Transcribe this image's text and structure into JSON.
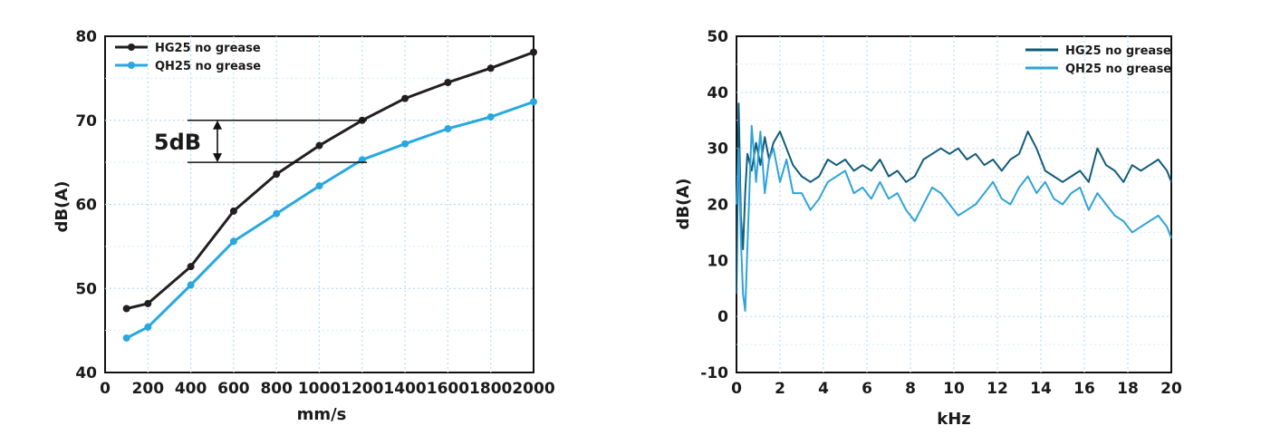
{
  "chart_data": [
    {
      "type": "line",
      "xlabel": "mm/s",
      "ylabel": "dB(A)",
      "xlim": [
        0,
        2000
      ],
      "ylim": [
        40,
        80
      ],
      "xticks": [
        "0",
        "200",
        "400",
        "600",
        "800",
        "1000",
        "1200",
        "1400",
        "1600",
        "1800",
        "2000"
      ],
      "yticks": [
        "40",
        "50",
        "60",
        "70",
        "80"
      ],
      "grid": true,
      "legend_position": "top-left",
      "annotation": "5dB",
      "annotation_range": [
        65,
        70
      ],
      "series": [
        {
          "name": "HG25 no grease",
          "color": "#231f20",
          "x": [
            100,
            200,
            400,
            600,
            800,
            1000,
            1200,
            1400,
            1600,
            1800,
            2000
          ],
          "y": [
            47.6,
            48.2,
            52.6,
            59.2,
            63.6,
            67.0,
            70.0,
            72.6,
            74.5,
            76.2,
            78.1
          ]
        },
        {
          "name": "QH25 no grease",
          "color": "#29a8e0",
          "x": [
            100,
            200,
            400,
            600,
            800,
            1000,
            1200,
            1400,
            1600,
            1800,
            2000
          ],
          "y": [
            44.1,
            45.4,
            50.4,
            55.6,
            58.9,
            62.2,
            65.3,
            67.2,
            69.0,
            70.4,
            72.2
          ]
        }
      ]
    },
    {
      "type": "line",
      "xlabel": "kHz",
      "ylabel": "dB(A)",
      "xlim": [
        0,
        20
      ],
      "ylim": [
        -10,
        50
      ],
      "xticks": [
        "0",
        "2",
        "4",
        "6",
        "8",
        "10",
        "12",
        "14",
        "16",
        "18",
        "20"
      ],
      "yticks": [
        "-10",
        "0",
        "10",
        "20",
        "30",
        "40",
        "50"
      ],
      "grid": true,
      "legend_position": "top-right",
      "series": [
        {
          "name": "HG25 no grease",
          "color": "#125b7a",
          "x": [
            0,
            0.1,
            0.2,
            0.3,
            0.4,
            0.5,
            0.7,
            0.9,
            1.1,
            1.3,
            1.5,
            1.7,
            2.0,
            2.3,
            2.6,
            3.0,
            3.4,
            3.8,
            4.2,
            4.6,
            5.0,
            5.4,
            5.8,
            6.2,
            6.6,
            7.0,
            7.4,
            7.8,
            8.2,
            8.6,
            9.0,
            9.4,
            9.8,
            10.2,
            10.6,
            11.0,
            11.4,
            11.8,
            12.2,
            12.6,
            13.0,
            13.4,
            13.8,
            14.2,
            14.6,
            15.0,
            15.4,
            15.8,
            16.2,
            16.6,
            17.0,
            17.4,
            17.8,
            18.2,
            18.6,
            19.0,
            19.4,
            19.8,
            20.0
          ],
          "y": [
            4,
            38,
            18,
            12,
            22,
            29,
            26,
            31,
            27,
            32,
            28,
            31,
            33,
            30,
            27,
            25,
            24,
            25,
            28,
            27,
            28,
            26,
            27,
            26,
            28,
            25,
            26,
            24,
            25,
            28,
            29,
            30,
            29,
            30,
            28,
            29,
            27,
            28,
            26,
            28,
            29,
            33,
            30,
            26,
            25,
            24,
            25,
            26,
            24,
            30,
            27,
            26,
            24,
            27,
            26,
            27,
            28,
            26,
            24
          ]
        },
        {
          "name": "QH25 no grease",
          "color": "#2fa3d9",
          "x": [
            0,
            0.1,
            0.2,
            0.3,
            0.4,
            0.5,
            0.7,
            0.9,
            1.1,
            1.3,
            1.5,
            1.7,
            2.0,
            2.3,
            2.6,
            3.0,
            3.4,
            3.8,
            4.2,
            4.6,
            5.0,
            5.4,
            5.8,
            6.2,
            6.6,
            7.0,
            7.4,
            7.8,
            8.2,
            8.6,
            9.0,
            9.4,
            9.8,
            10.2,
            10.6,
            11.0,
            11.4,
            11.8,
            12.2,
            12.6,
            13.0,
            13.4,
            13.8,
            14.2,
            14.6,
            15.0,
            15.4,
            15.8,
            16.2,
            16.6,
            17.0,
            17.4,
            17.8,
            18.2,
            18.6,
            19.0,
            19.4,
            19.8,
            20.0
          ],
          "y": [
            20,
            30,
            14,
            4,
            1,
            12,
            34,
            24,
            33,
            22,
            28,
            30,
            24,
            28,
            22,
            22,
            19,
            21,
            24,
            25,
            26,
            22,
            23,
            21,
            24,
            21,
            22,
            19,
            17,
            20,
            23,
            22,
            20,
            18,
            19,
            20,
            22,
            24,
            21,
            20,
            23,
            25,
            22,
            24,
            21,
            20,
            22,
            23,
            19,
            22,
            20,
            18,
            17,
            15,
            16,
            17,
            18,
            16,
            14
          ]
        }
      ]
    }
  ]
}
